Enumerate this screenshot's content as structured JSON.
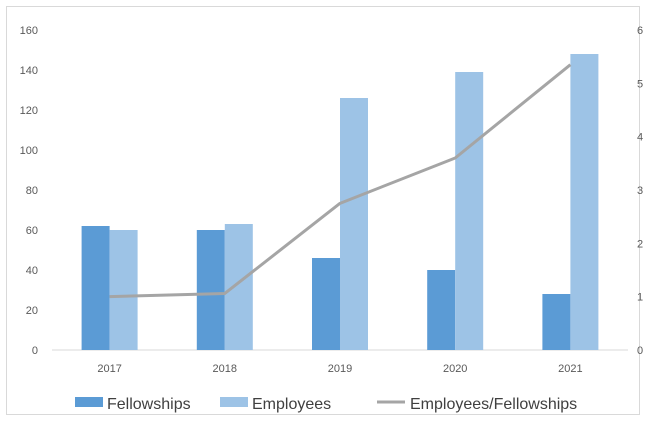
{
  "chart_data": {
    "type": "bar",
    "categories": [
      "2017",
      "2018",
      "2019",
      "2020",
      "2021"
    ],
    "series": [
      {
        "name": "Fellowships",
        "kind": "bar",
        "axis": "left",
        "color": "#5b9bd5",
        "values": [
          62,
          60,
          46,
          40,
          28
        ]
      },
      {
        "name": "Employees",
        "kind": "bar",
        "axis": "left",
        "color": "#9dc3e6",
        "values": [
          60,
          63,
          126,
          139,
          148
        ]
      },
      {
        "name": "Employees/Fellowships",
        "kind": "line",
        "axis": "right",
        "color": "#a5a5a5",
        "values": [
          1.0,
          1.06,
          2.75,
          3.6,
          5.35
        ]
      }
    ],
    "y_left": {
      "min": 0,
      "max": 160,
      "ticks": [
        "0",
        "20",
        "40",
        "60",
        "80",
        "100",
        "120",
        "140",
        "160"
      ]
    },
    "y_right": {
      "min": 0,
      "max": 6,
      "ticks": [
        "0",
        "1",
        "2",
        "3",
        "4",
        "5",
        "6"
      ]
    },
    "grid": false,
    "legend_position": "bottom"
  }
}
